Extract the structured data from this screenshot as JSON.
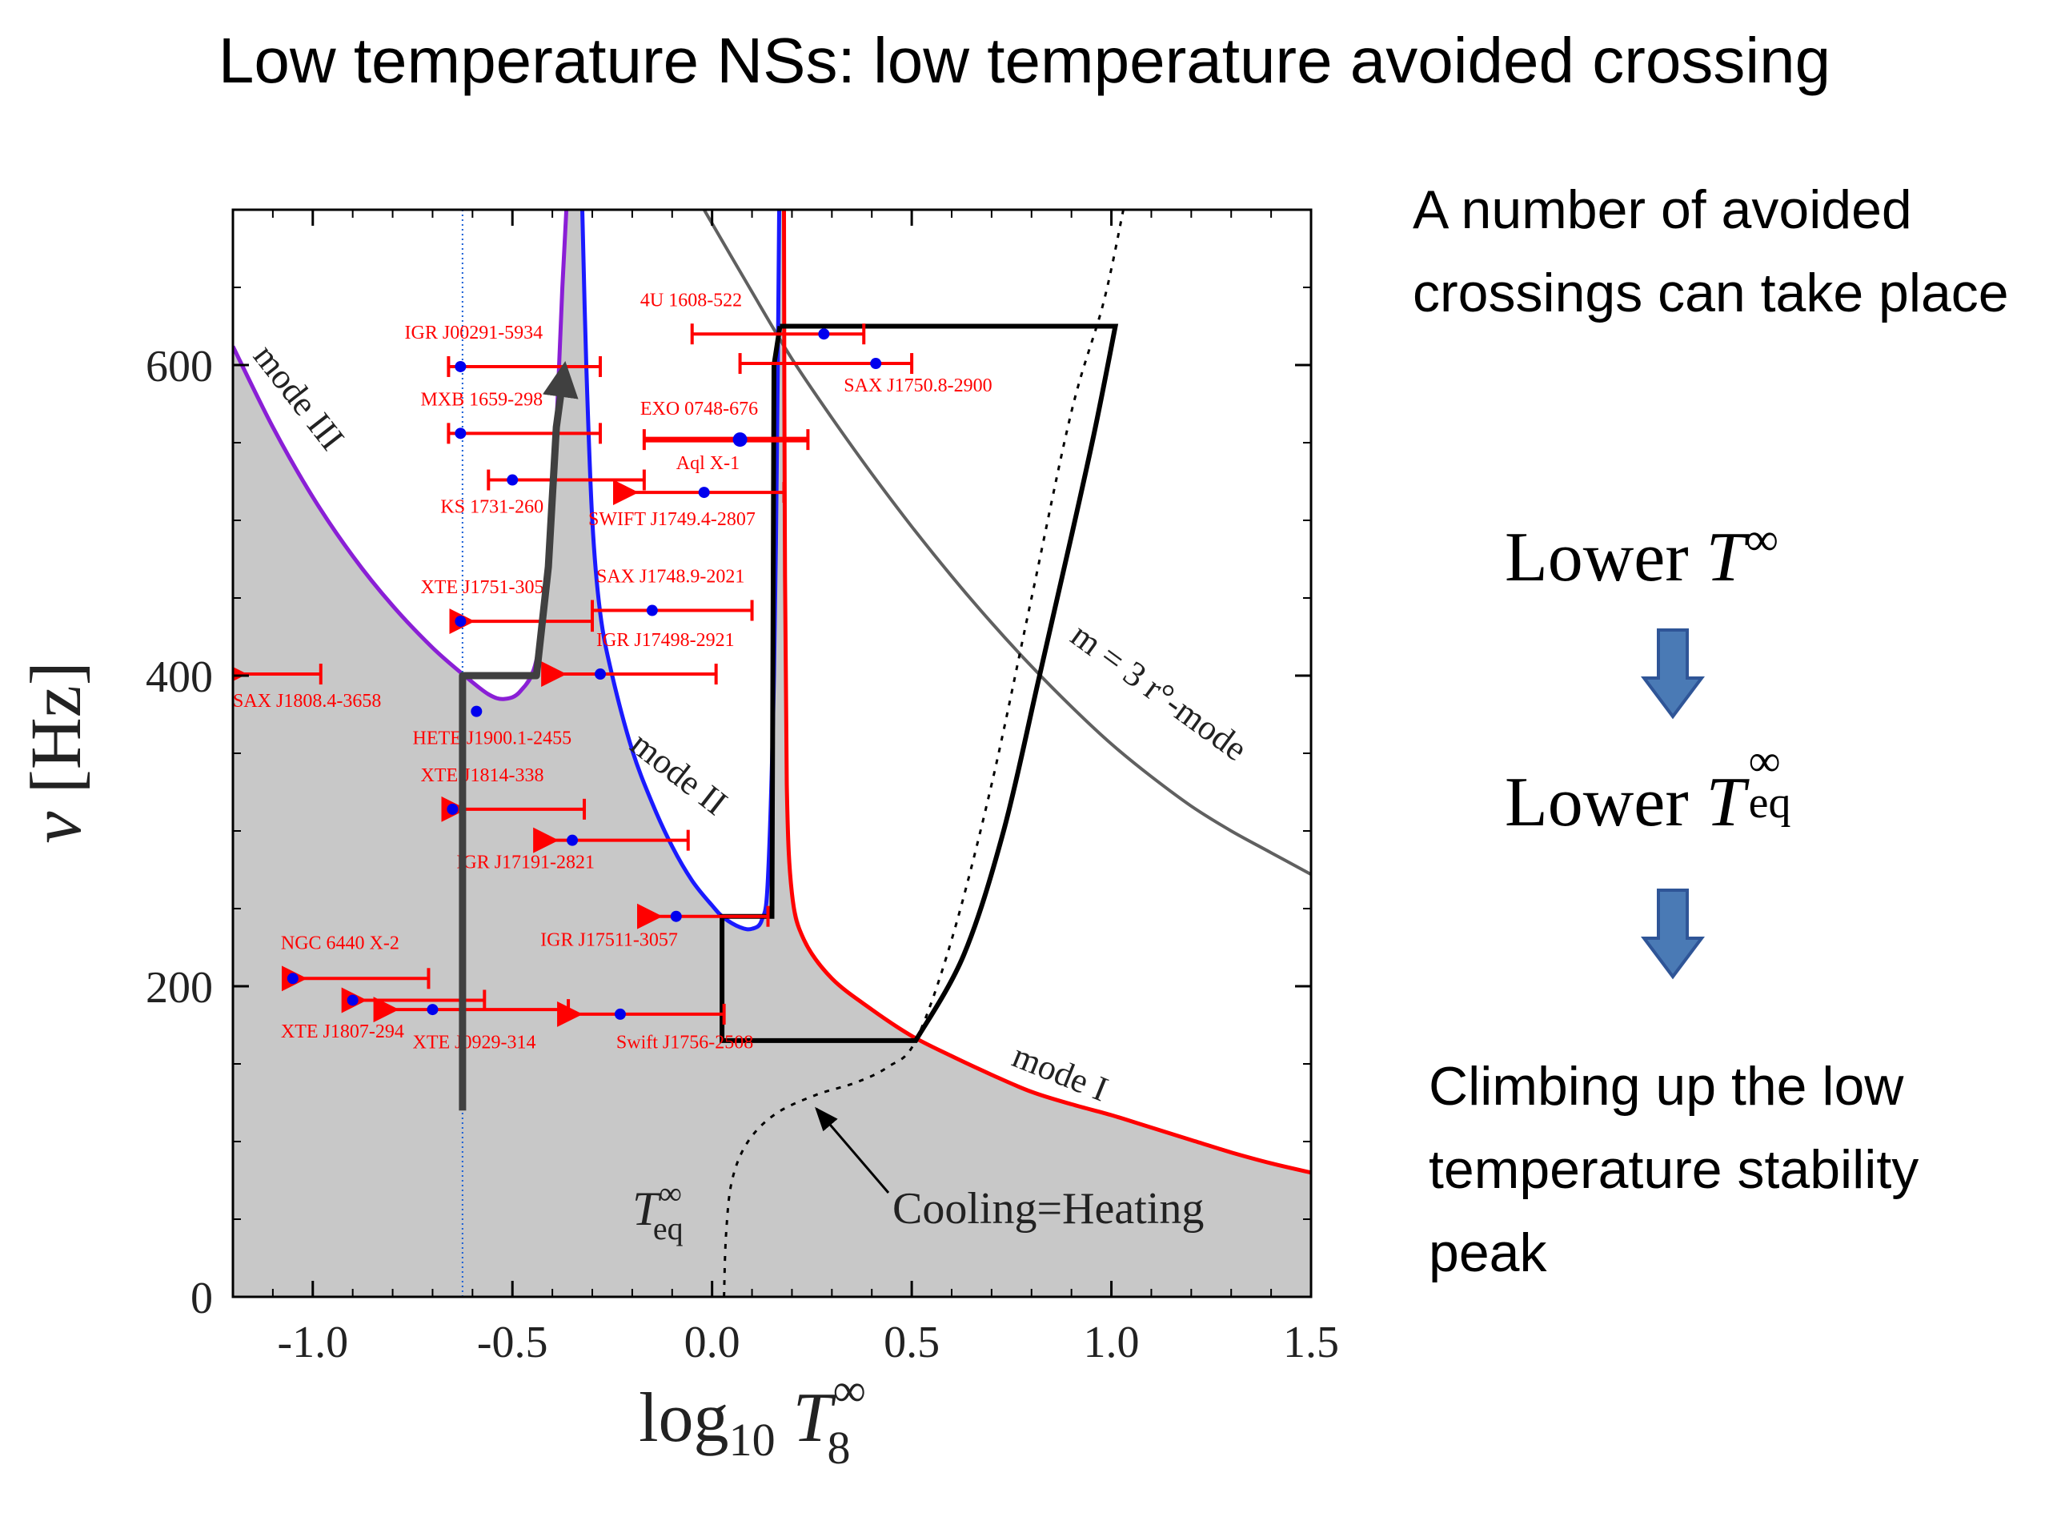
{
  "slide": {
    "title": "Low temperature NSs: low temperature avoided crossing",
    "bullets": [
      "A number of avoided crossings can take place",
      "Lower",
      "Lower",
      "Climbing up the low temperature stability peak"
    ],
    "math": {
      "t_inf": "T",
      "t_inf_sup": "∞",
      "t_eq": "T",
      "t_eq_sup": "∞",
      "t_eq_sub": "eq"
    },
    "colors": {
      "down_arrow": "#4a7ab5",
      "down_arrow_edge": "#2f5597"
    }
  },
  "chart_data": {
    "type": "scatter",
    "xlabel": "log₁₀ T₈^∞",
    "ylabel": "ν [Hz]",
    "xlim": [
      -1.2,
      1.5
    ],
    "ylim": [
      0,
      700
    ],
    "xticks": [
      -1.0,
      -0.5,
      0.0,
      0.5,
      1.0,
      1.5
    ],
    "xtick_labels": [
      "-1.0",
      "-0.5",
      "0.0",
      "0.5",
      "1.0",
      "1.5"
    ],
    "yticks": [
      0,
      200,
      400,
      600
    ],
    "ytick_labels": [
      "0",
      "200",
      "400",
      "600"
    ],
    "colors": {
      "mode_I": "#ff0000",
      "mode_II": "#1a1aff",
      "mode_III": "#8a1fd6",
      "r_mode": "#606060",
      "region": "#c8c8c8",
      "points": "#0000ee",
      "errorbars": "#ff0000",
      "box": "#000000",
      "path_arrow": "#404040",
      "dotted_line": "#1a5fd6"
    },
    "curve_labels": {
      "mode_I": "mode I",
      "mode_II": "mode II",
      "mode_III": "mode III",
      "r_mode": "m = 3 r°-mode",
      "cooling": "Cooling=Heating",
      "t_eq": "T",
      "t_eq_sup": "∞",
      "t_eq_sub": "eq"
    },
    "sources": [
      {
        "name": "4U 1608-522",
        "x": 0.28,
        "y": 620,
        "xlo": -0.05,
        "xhi": 0.38,
        "ul": false
      },
      {
        "name": "SAX J1750.8-2900",
        "x": 0.41,
        "y": 601,
        "xlo": 0.07,
        "xhi": 0.5,
        "ul": false
      },
      {
        "name": "IGR J00291-5934",
        "x": -0.63,
        "y": 599,
        "xlo": -0.66,
        "xhi": -0.28,
        "ul": false
      },
      {
        "name": "MXB 1659-298",
        "x": -0.63,
        "y": 556,
        "xlo": -0.66,
        "xhi": -0.28,
        "ul": false
      },
      {
        "name": "EXO 0748-676",
        "x": 0.07,
        "y": 552,
        "xlo": -0.17,
        "xhi": 0.24,
        "ul": false
      },
      {
        "name": "KS 1731-260",
        "x": -0.5,
        "y": 526,
        "xlo": -0.56,
        "xhi": -0.17,
        "ul": false
      },
      {
        "name": "Aql X-1",
        "x": -0.02,
        "y": 518,
        "xlo": -0.22,
        "xhi": 0.18,
        "ul": true
      },
      {
        "name": "SWIFT J1749.4-2807",
        "x": 0.17,
        "y": 518,
        "xlo": 0.17,
        "xhi": 0.17,
        "ul": false
      },
      {
        "name": "XTE J1751-305",
        "x": -0.63,
        "y": 435,
        "xlo": -0.63,
        "xhi": -0.3,
        "ul": true
      },
      {
        "name": "SAX J1748.9-2021",
        "x": -0.15,
        "y": 442,
        "xlo": -0.3,
        "xhi": 0.1,
        "ul": false
      },
      {
        "name": "IGR J17498-2921",
        "x": -0.28,
        "y": 401,
        "xlo": -0.4,
        "xhi": 0.01,
        "ul": true
      },
      {
        "name": "SAX J1808.4-3658",
        "x": -0.98,
        "y": 401,
        "xlo": -1.2,
        "xhi": -0.98,
        "ul": true
      },
      {
        "name": "HETE J1900.1-2455",
        "x": -0.59,
        "y": 377,
        "xlo": -0.59,
        "xhi": -0.59,
        "ul": false
      },
      {
        "name": "XTE J1814-338",
        "x": -0.65,
        "y": 314,
        "xlo": -0.65,
        "xhi": -0.32,
        "ul": true
      },
      {
        "name": "IGR J17191-2821",
        "x": -0.35,
        "y": 294,
        "xlo": -0.42,
        "xhi": -0.06,
        "ul": true
      },
      {
        "name": "IGR J17511-3057",
        "x": -0.09,
        "y": 245,
        "xlo": -0.16,
        "xhi": 0.14,
        "ul": true
      },
      {
        "name": "NGC 6440 X-2",
        "x": -1.05,
        "y": 205,
        "xlo": -1.05,
        "xhi": -0.71,
        "ul": true
      },
      {
        "name": "XTE J1807-294",
        "x": -0.9,
        "y": 191,
        "xlo": -0.9,
        "xhi": -0.57,
        "ul": true
      },
      {
        "name": "XTE J0929-314",
        "x": -0.7,
        "y": 185,
        "xlo": -0.82,
        "xhi": -0.36,
        "ul": true
      },
      {
        "name": "Swift J1756-2508",
        "x": -0.23,
        "y": 182,
        "xlo": -0.36,
        "xhi": 0.03,
        "ul": true
      }
    ]
  }
}
